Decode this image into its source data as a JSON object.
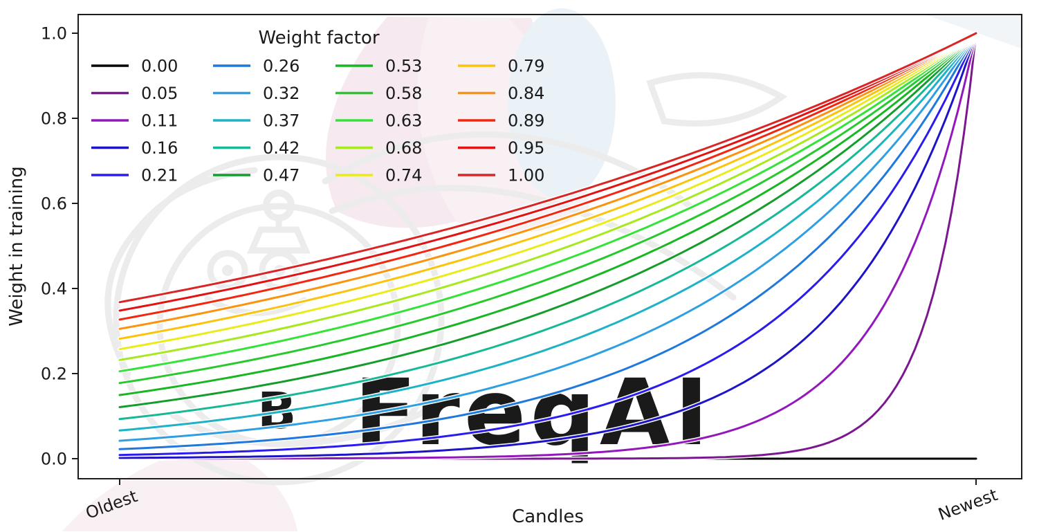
{
  "watermark": {
    "text": "FreqAI",
    "logo_glyph": "B",
    "colors": {
      "line_art": "#ececec",
      "text_gray": "#ebebeb",
      "leaf_pink": "#f6eaf0",
      "leaf_pink_light": "#f9f0f4",
      "leaf_blue": "#eaf2f7"
    }
  },
  "chart_data": {
    "type": "line",
    "title": "",
    "legend_title": "Weight factor",
    "legend_position": "upper left",
    "legend_columns": 4,
    "xlabel": "Candles",
    "ylabel": "Weight in training",
    "x_tick_labels": [
      "Oldest",
      "Newest"
    ],
    "y_ticks": [
      0.0,
      0.2,
      0.4,
      0.6,
      0.8,
      1.0
    ],
    "y_tick_labels": [
      "0.0",
      "0.2",
      "0.4",
      "0.6",
      "0.8",
      "1.0"
    ],
    "x_domain": [
      0,
      1
    ],
    "ylim": [
      -0.05,
      1.05
    ],
    "grid": false,
    "curve_rule": "weight(x) = exp(-(1 - x) / factor) for x from 0 (Oldest) to 1 (Newest); factor 0.00 stays at 0",
    "series": [
      {
        "label": "0.00",
        "factor": 0.0,
        "color": "#000000",
        "weight_at_oldest": 0.0,
        "weight_at_newest": 0.0
      },
      {
        "label": "0.05",
        "factor": 0.0526,
        "color": "#7b188f",
        "weight_at_oldest": 0.0,
        "weight_at_newest": 1.0
      },
      {
        "label": "0.11",
        "factor": 0.1053,
        "color": "#9318bb",
        "weight_at_oldest": 0.0001,
        "weight_at_newest": 1.0
      },
      {
        "label": "0.16",
        "factor": 0.1579,
        "color": "#1d14c8",
        "weight_at_oldest": 0.0018,
        "weight_at_newest": 1.0
      },
      {
        "label": "0.21",
        "factor": 0.2105,
        "color": "#2a1cef",
        "weight_at_oldest": 0.0087,
        "weight_at_newest": 1.0
      },
      {
        "label": "0.26",
        "factor": 0.2632,
        "color": "#1e78dd",
        "weight_at_oldest": 0.0224,
        "weight_at_newest": 1.0
      },
      {
        "label": "0.32",
        "factor": 0.3158,
        "color": "#2f9fe3",
        "weight_at_oldest": 0.0421,
        "weight_at_newest": 1.0
      },
      {
        "label": "0.37",
        "factor": 0.3684,
        "color": "#1db2c6",
        "weight_at_oldest": 0.0662,
        "weight_at_newest": 1.0
      },
      {
        "label": "0.42",
        "factor": 0.4211,
        "color": "#17b995",
        "weight_at_oldest": 0.093,
        "weight_at_newest": 1.0
      },
      {
        "label": "0.47",
        "factor": 0.4737,
        "color": "#149d2d",
        "weight_at_oldest": 0.1211,
        "weight_at_newest": 1.0
      },
      {
        "label": "0.53",
        "factor": 0.5263,
        "color": "#17b722",
        "weight_at_oldest": 0.1496,
        "weight_at_newest": 1.0
      },
      {
        "label": "0.58",
        "factor": 0.5789,
        "color": "#28c92e",
        "weight_at_oldest": 0.1778,
        "weight_at_newest": 1.0
      },
      {
        "label": "0.63",
        "factor": 0.6316,
        "color": "#33e337",
        "weight_at_oldest": 0.2053,
        "weight_at_newest": 1.0
      },
      {
        "label": "0.68",
        "factor": 0.6842,
        "color": "#a7e81f",
        "weight_at_oldest": 0.2318,
        "weight_at_newest": 1.0
      },
      {
        "label": "0.74",
        "factor": 0.7368,
        "color": "#ebeb1c",
        "weight_at_oldest": 0.2574,
        "weight_at_newest": 1.0
      },
      {
        "label": "0.79",
        "factor": 0.7895,
        "color": "#fcc30d",
        "weight_at_oldest": 0.2817,
        "weight_at_newest": 1.0
      },
      {
        "label": "0.84",
        "factor": 0.8421,
        "color": "#fb930e",
        "weight_at_oldest": 0.305,
        "weight_at_newest": 1.0
      },
      {
        "label": "0.89",
        "factor": 0.8947,
        "color": "#f1270f",
        "weight_at_oldest": 0.327,
        "weight_at_newest": 1.0
      },
      {
        "label": "0.95",
        "factor": 0.9474,
        "color": "#e21212",
        "weight_at_oldest": 0.348,
        "weight_at_newest": 1.0
      },
      {
        "label": "1.00",
        "factor": 1.0,
        "color": "#d92525",
        "weight_at_oldest": 0.3679,
        "weight_at_newest": 1.0
      }
    ]
  },
  "style": {
    "spine_color": "#1c1c1c",
    "background": "#ffffff"
  }
}
